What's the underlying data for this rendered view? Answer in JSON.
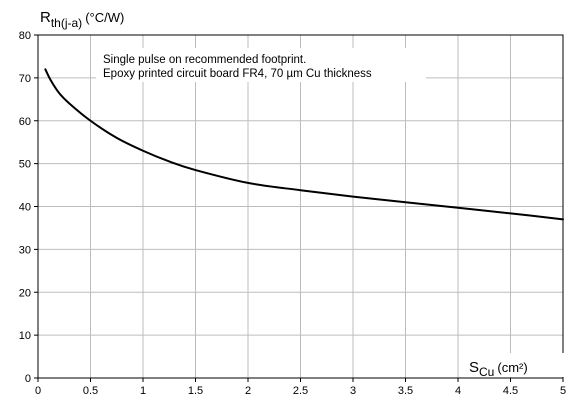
{
  "chart_data": {
    "type": "line",
    "ylabel": {
      "main": "R",
      "sub": "th(j-a)",
      "unit": "(°C/W)"
    },
    "xlabel": {
      "main": "S",
      "sub": "Cu",
      "unit": "(cm²)"
    },
    "xlim": [
      0,
      5
    ],
    "ylim": [
      0,
      80
    ],
    "x_ticks": [
      0,
      0.5,
      1,
      1.5,
      2,
      2.5,
      3,
      3.5,
      4,
      4.5,
      5
    ],
    "y_ticks": [
      0,
      10,
      20,
      30,
      40,
      50,
      60,
      70,
      80
    ],
    "grid": true,
    "annotation_lines": [
      "Single pulse on recommended footprint.",
      "Epoxy printed circuit board FR4, 70 µm Cu thickness"
    ],
    "series": [
      {
        "color": "#000000",
        "x": [
          0.07,
          0.12,
          0.2,
          0.3,
          0.5,
          0.75,
          1.0,
          1.25,
          1.5,
          2.0,
          2.5,
          3.0,
          3.5,
          4.0,
          4.5,
          5.0
        ],
        "y": [
          72,
          69.5,
          66.5,
          64,
          60,
          56,
          53,
          50.5,
          48.5,
          45.5,
          43.8,
          42.3,
          41,
          39.7,
          38.4,
          37
        ]
      }
    ]
  }
}
